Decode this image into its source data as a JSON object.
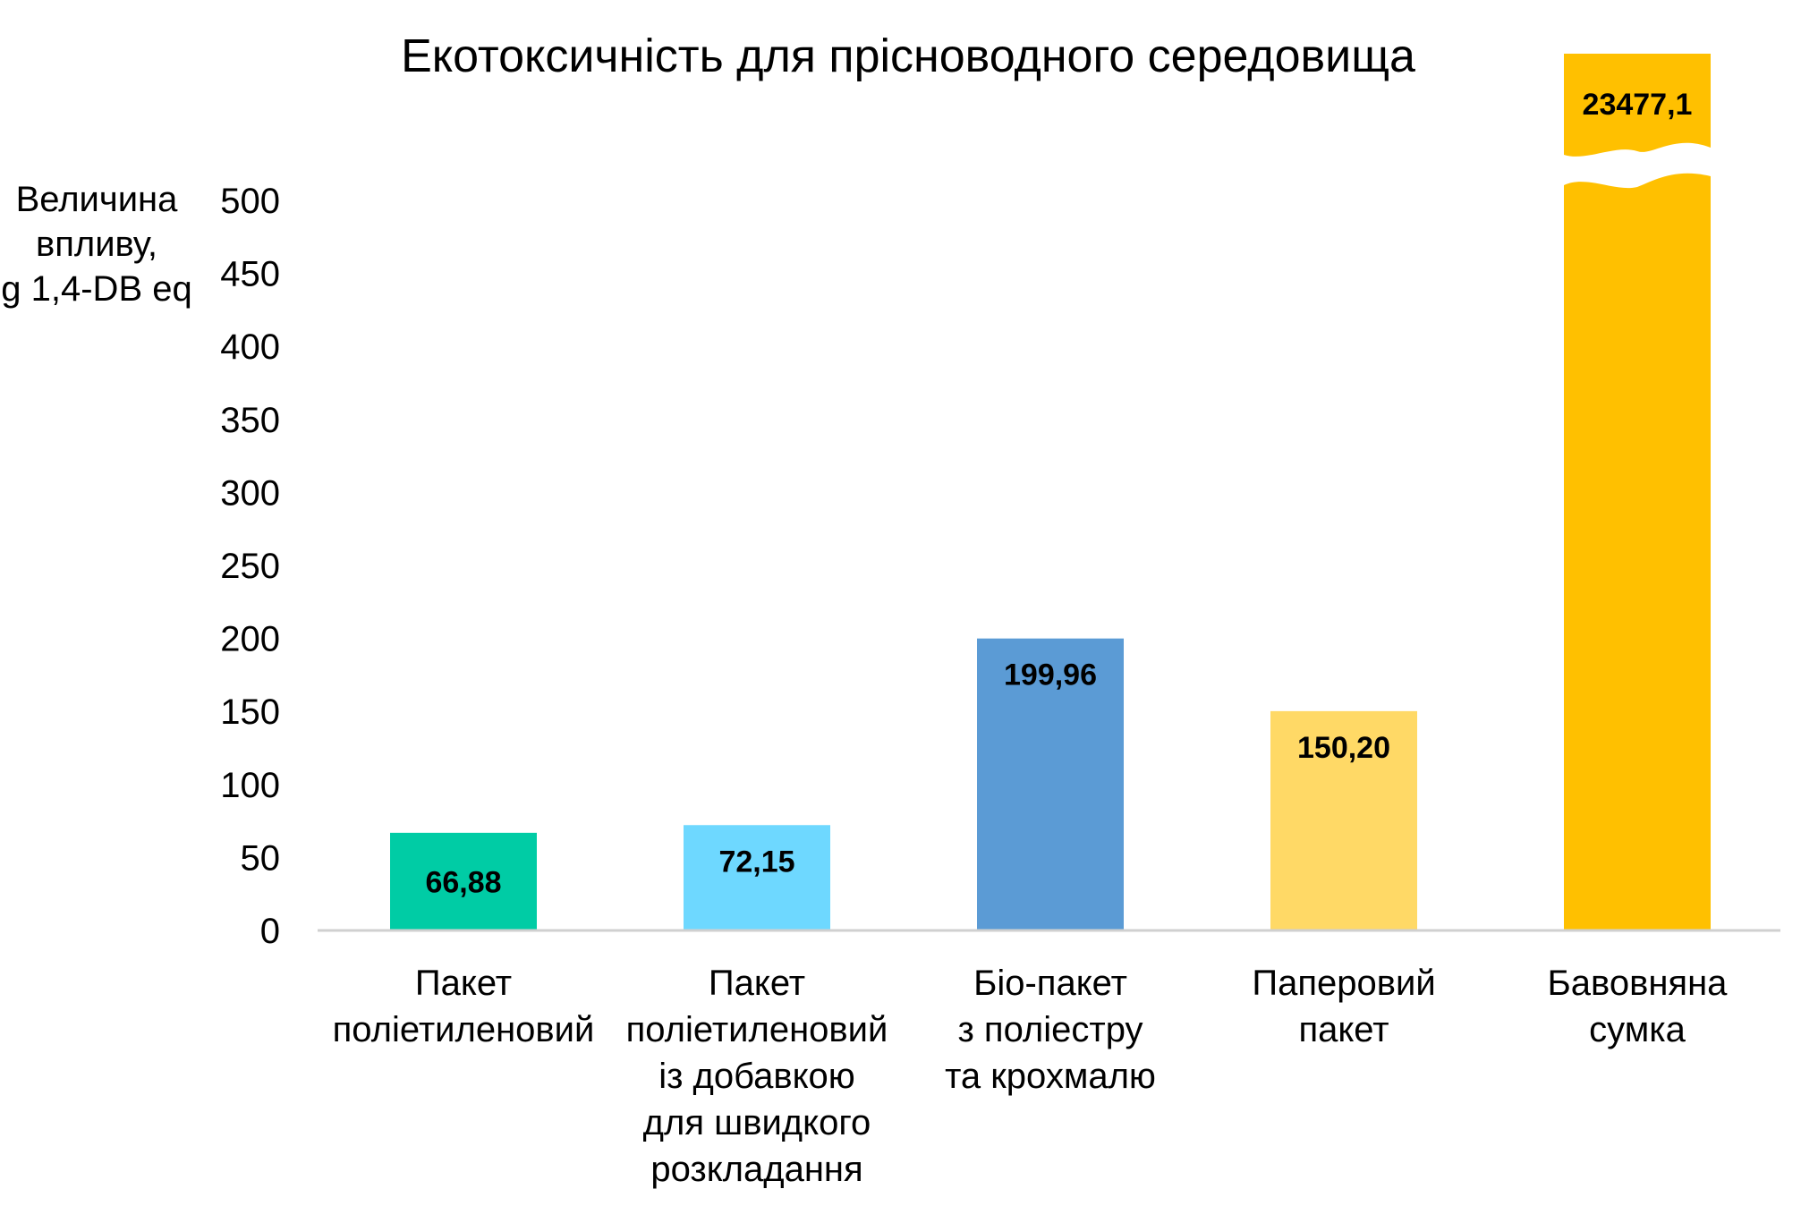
{
  "chart_data": {
    "type": "bar",
    "title": "Екотоксичність для прісноводного середовища",
    "ylabel": [
      "Величина",
      "впливу,",
      "g 1,4-DB eq"
    ],
    "xlabel": "",
    "ylim": [
      0,
      500
    ],
    "yticks": [
      "0",
      "50",
      "100",
      "150",
      "200",
      "250",
      "300",
      "350",
      "400",
      "450",
      "500"
    ],
    "axis_break": true,
    "grid": false,
    "categories": [
      [
        "Пакет",
        "поліетиленовий"
      ],
      [
        "Пакет",
        "поліетиленовий",
        "із добавкою",
        "для швидкого",
        "розкладання"
      ],
      [
        "Біо-пакет",
        "з поліестру",
        "та крохмалю"
      ],
      [
        "Паперовий",
        "пакет"
      ],
      [
        "Бавовняна",
        "сумка"
      ]
    ],
    "values": [
      66.88,
      72.15,
      199.96,
      150.2,
      23477.1
    ],
    "data_labels": [
      "66,88",
      "72,15",
      "199,96",
      "150,20",
      "23477,1"
    ],
    "colors": [
      "#00CCA5",
      "#6ED8FF",
      "#5B9BD5",
      "#FFD966",
      "#FFC000"
    ]
  }
}
